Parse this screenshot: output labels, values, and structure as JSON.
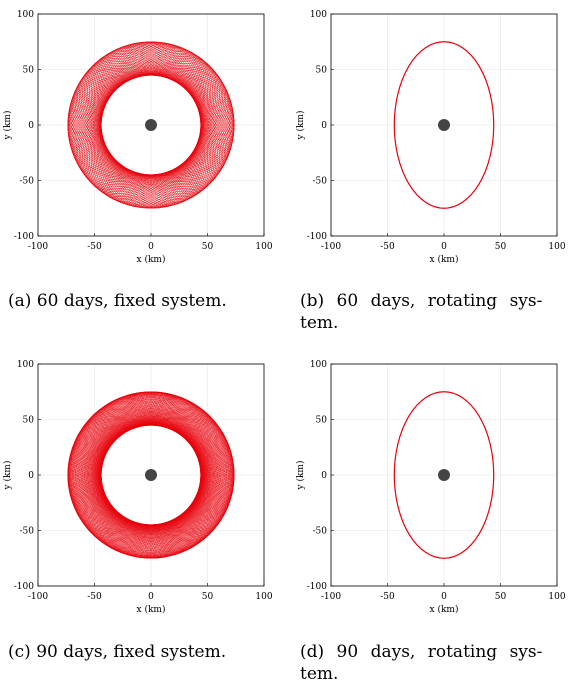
{
  "captions": {
    "a": "(a) 60 days, fixed system.",
    "b_line1": "(b) 60 days, rotating sys-",
    "b_line2": "tem.",
    "c": "(c) 90 days, fixed system.",
    "d_line1": "(d) 90 days, rotating sys-",
    "d_line2": "tem."
  },
  "colors": {
    "trajectory": "#e8000b",
    "body": "#444444",
    "grid": "#e6e6e6",
    "axes": "#000000"
  },
  "chart_data": [
    {
      "id": "a",
      "type": "line",
      "title": "",
      "xlabel": "x (km)",
      "ylabel": "y (km)",
      "xlim": [
        -100,
        100
      ],
      "ylim": [
        -100,
        100
      ],
      "xticks": [
        -100,
        -50,
        0,
        50,
        100
      ],
      "yticks": [
        -100,
        -50,
        0,
        50,
        100
      ],
      "grid": true,
      "central_body": {
        "x": 0,
        "y": 0
      },
      "orbit": {
        "semi_major_y": 75,
        "semi_minor_x": 44,
        "frame": "fixed",
        "loops": 60
      },
      "ring": {
        "inner_radius": 44,
        "outer_radius": 75
      }
    },
    {
      "id": "b",
      "type": "line",
      "title": "",
      "xlabel": "x (km)",
      "ylabel": "y (km)",
      "xlim": [
        -100,
        100
      ],
      "ylim": [
        -100,
        100
      ],
      "xticks": [
        -100,
        -50,
        0,
        50,
        100
      ],
      "yticks": [
        -100,
        -50,
        0,
        50,
        100
      ],
      "grid": true,
      "central_body": {
        "x": 0,
        "y": 0
      },
      "orbit": {
        "semi_major_y": 75,
        "semi_minor_x": 44,
        "frame": "rotating"
      }
    },
    {
      "id": "c",
      "type": "line",
      "title": "",
      "xlabel": "x (km)",
      "ylabel": "y (km)",
      "xlim": [
        -100,
        100
      ],
      "ylim": [
        -100,
        100
      ],
      "xticks": [
        -100,
        -50,
        0,
        50,
        100
      ],
      "yticks": [
        -100,
        -50,
        0,
        50,
        100
      ],
      "grid": true,
      "central_body": {
        "x": 0,
        "y": 0
      },
      "orbit": {
        "semi_major_y": 75,
        "semi_minor_x": 44,
        "frame": "fixed",
        "loops": 90
      },
      "ring": {
        "inner_radius": 44,
        "outer_radius": 75
      }
    },
    {
      "id": "d",
      "type": "line",
      "title": "",
      "xlabel": "x (km)",
      "ylabel": "y (km)",
      "xlim": [
        -100,
        100
      ],
      "ylim": [
        -100,
        100
      ],
      "xticks": [
        -100,
        -50,
        0,
        50,
        100
      ],
      "yticks": [
        -100,
        -50,
        0,
        50,
        100
      ],
      "grid": true,
      "central_body": {
        "x": 0,
        "y": 0
      },
      "orbit": {
        "semi_major_y": 75,
        "semi_minor_x": 44,
        "frame": "rotating"
      }
    }
  ]
}
